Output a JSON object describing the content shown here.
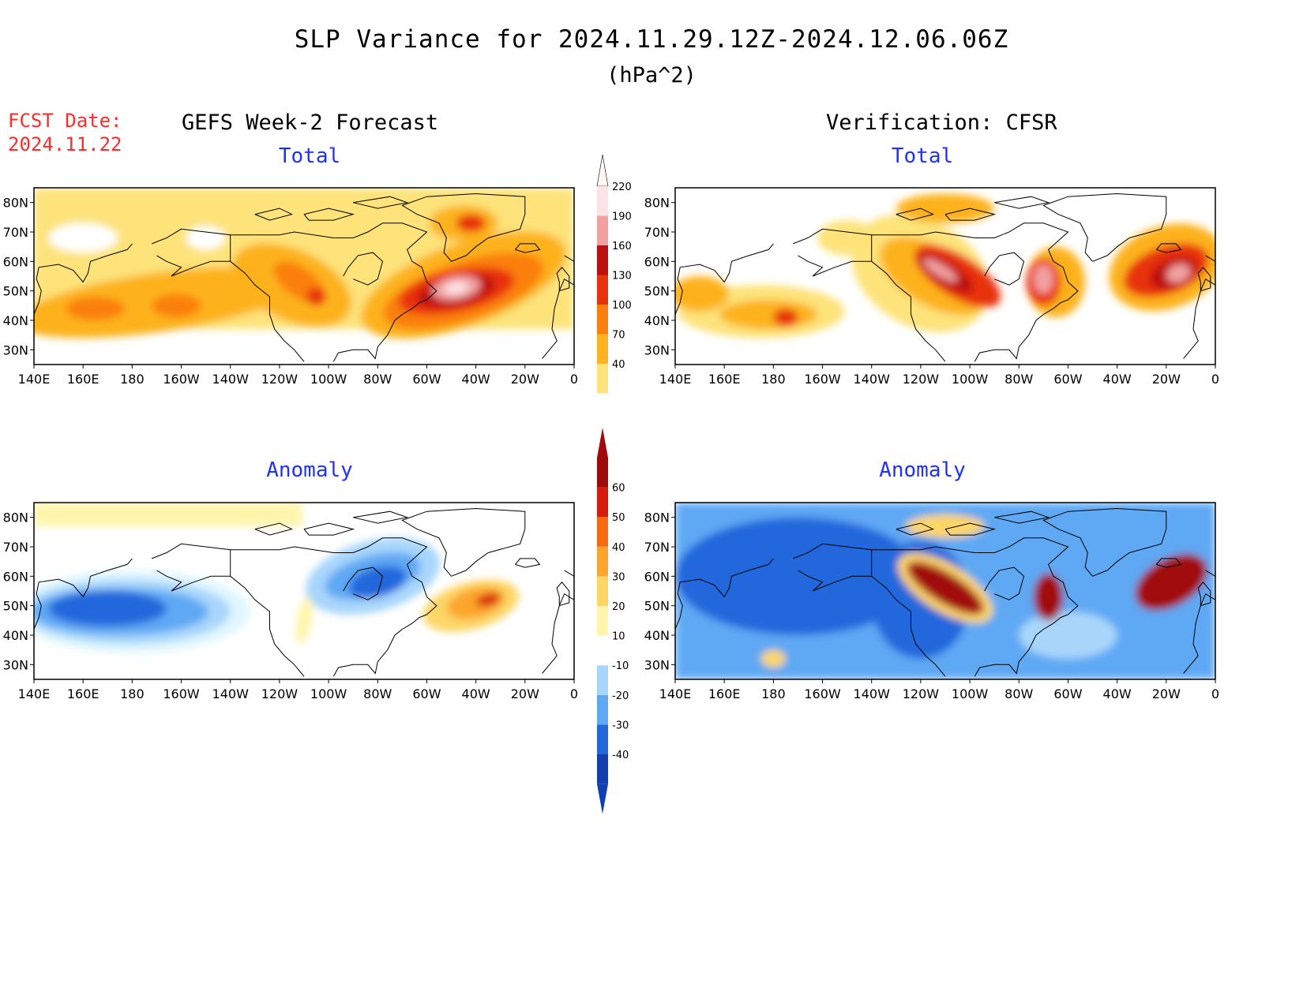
{
  "title": "SLP Variance for 2024.11.29.12Z-2024.12.06.06Z",
  "units": "(hPa^2)",
  "fcst_date_label": "FCST Date:",
  "fcst_date": "2024.11.22",
  "left_column": "GEFS Week-2 Forecast",
  "right_column": "Verification: CFSR",
  "panels": [
    {
      "id": "fcst-total",
      "label": "Total"
    },
    {
      "id": "verif-total",
      "label": "Total"
    },
    {
      "id": "fcst-anomaly",
      "label": "Anomaly"
    },
    {
      "id": "verif-anomaly",
      "label": "Anomaly"
    }
  ],
  "lat_labels": [
    "80N",
    "70N",
    "60N",
    "50N",
    "40N",
    "30N"
  ],
  "lon_labels": [
    "140E",
    "160E",
    "180",
    "160W",
    "140W",
    "120W",
    "100W",
    "80W",
    "60W",
    "40W",
    "20W",
    "0"
  ],
  "colors": {
    "total": [
      "#fde37a",
      "#fdb21f",
      "#fb7f0d",
      "#e8320d",
      "#bd0f0f",
      "#f2a1a1",
      "#fde3e6"
    ],
    "anomaly_pos": [
      "#fff5aa",
      "#fdd666",
      "#fda42c",
      "#f76a10",
      "#d81a0a",
      "#a10a0a"
    ],
    "anomaly_neg": [
      "#dff6ff",
      "#a8d6fb",
      "#5ea8f4",
      "#2267dc",
      "#123fb0"
    ]
  },
  "colorbar_total": {
    "ticks": [
      "40",
      "70",
      "100",
      "130",
      "160",
      "190",
      "220"
    ]
  },
  "colorbar_anomaly": {
    "ticks": [
      "-40",
      "-30",
      "-20",
      "-10",
      "10",
      "20",
      "30",
      "40",
      "50",
      "60"
    ]
  }
}
